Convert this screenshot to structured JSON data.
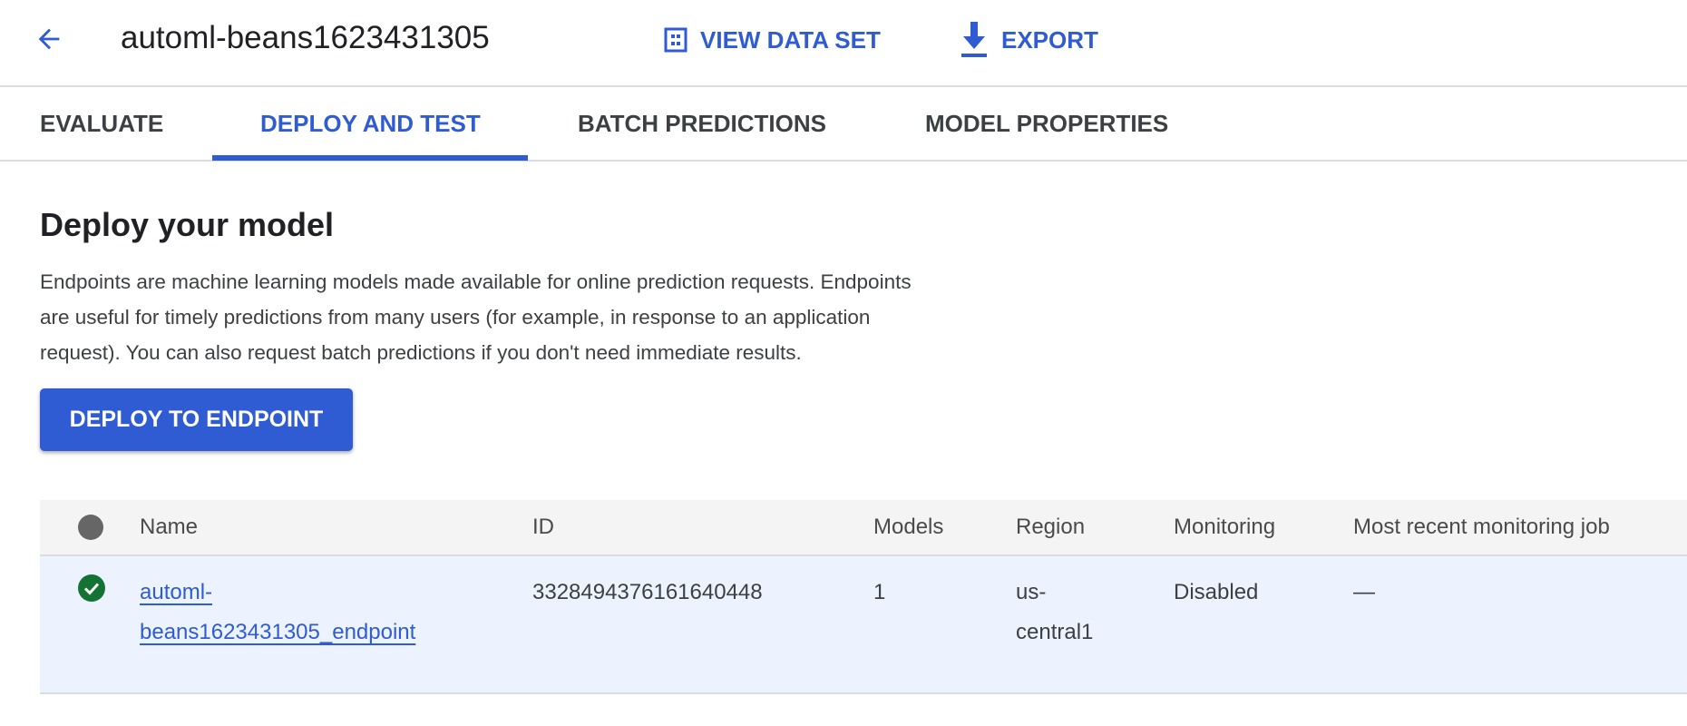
{
  "header": {
    "title": "automl-beans1623431305",
    "view_data_set": "VIEW DATA SET",
    "export": "EXPORT"
  },
  "tabs": [
    {
      "label": "EVALUATE"
    },
    {
      "label": "DEPLOY AND TEST",
      "active": true
    },
    {
      "label": "BATCH PREDICTIONS"
    },
    {
      "label": "MODEL PROPERTIES"
    }
  ],
  "main": {
    "heading": "Deploy your model",
    "description_lines": [
      "Endpoints are machine learning models made available for online prediction requests. Endpoints",
      "are useful for timely predictions from many users (for example, in response to an application",
      "request). You can also request batch predictions if you don't need immediate results."
    ],
    "deploy_button": "DEPLOY TO ENDPOINT"
  },
  "table": {
    "columns": [
      "Name",
      "ID",
      "Models",
      "Region",
      "Monitoring",
      "Most recent monitoring job"
    ],
    "rows": [
      {
        "status": "success",
        "name_lines": [
          "automl-",
          "beans1623431305_endpoint"
        ],
        "id": "3328494376161640448",
        "models": "1",
        "region_lines": [
          "us-",
          "central1"
        ],
        "monitoring": "Disabled",
        "recent_job": "—"
      }
    ]
  },
  "colors": {
    "accent": "#2f5bd3",
    "success": "#137333",
    "row_highlight": "#ecf3fe"
  }
}
